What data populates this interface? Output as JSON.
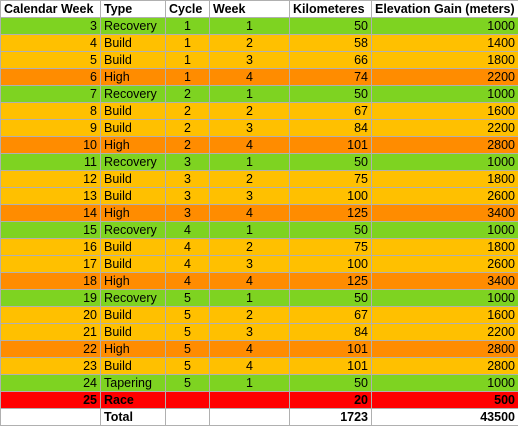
{
  "headers": {
    "calendar_week": "Calendar Week",
    "type": "Type",
    "cycle": "Cycle",
    "week": "Week",
    "km": "Kilometeres",
    "elevation": "Elevation Gain (meters)"
  },
  "colors": {
    "recovery": "#7ed321",
    "build": "#ffc000",
    "high": "#ff8c00",
    "tapering": "#7ed321",
    "race": "#ff0000"
  },
  "rows": [
    {
      "cal": "3",
      "type": "Recovery",
      "cycle": "1",
      "week": "1",
      "km": "50",
      "elev": "1000",
      "cls": "recovery"
    },
    {
      "cal": "4",
      "type": "Build",
      "cycle": "1",
      "week": "2",
      "km": "58",
      "elev": "1400",
      "cls": "build"
    },
    {
      "cal": "5",
      "type": "Build",
      "cycle": "1",
      "week": "3",
      "km": "66",
      "elev": "1800",
      "cls": "build"
    },
    {
      "cal": "6",
      "type": "High",
      "cycle": "1",
      "week": "4",
      "km": "74",
      "elev": "2200",
      "cls": "high"
    },
    {
      "cal": "7",
      "type": "Recovery",
      "cycle": "2",
      "week": "1",
      "km": "50",
      "elev": "1000",
      "cls": "recovery"
    },
    {
      "cal": "8",
      "type": "Build",
      "cycle": "2",
      "week": "2",
      "km": "67",
      "elev": "1600",
      "cls": "build"
    },
    {
      "cal": "9",
      "type": "Build",
      "cycle": "2",
      "week": "3",
      "km": "84",
      "elev": "2200",
      "cls": "build"
    },
    {
      "cal": "10",
      "type": "High",
      "cycle": "2",
      "week": "4",
      "km": "101",
      "elev": "2800",
      "cls": "high"
    },
    {
      "cal": "11",
      "type": "Recovery",
      "cycle": "3",
      "week": "1",
      "km": "50",
      "elev": "1000",
      "cls": "recovery"
    },
    {
      "cal": "12",
      "type": "Build",
      "cycle": "3",
      "week": "2",
      "km": "75",
      "elev": "1800",
      "cls": "build"
    },
    {
      "cal": "13",
      "type": "Build",
      "cycle": "3",
      "week": "3",
      "km": "100",
      "elev": "2600",
      "cls": "build"
    },
    {
      "cal": "14",
      "type": "High",
      "cycle": "3",
      "week": "4",
      "km": "125",
      "elev": "3400",
      "cls": "high"
    },
    {
      "cal": "15",
      "type": "Recovery",
      "cycle": "4",
      "week": "1",
      "km": "50",
      "elev": "1000",
      "cls": "recovery"
    },
    {
      "cal": "16",
      "type": "Build",
      "cycle": "4",
      "week": "2",
      "km": "75",
      "elev": "1800",
      "cls": "build"
    },
    {
      "cal": "17",
      "type": "Build",
      "cycle": "4",
      "week": "3",
      "km": "100",
      "elev": "2600",
      "cls": "build"
    },
    {
      "cal": "18",
      "type": "High",
      "cycle": "4",
      "week": "4",
      "km": "125",
      "elev": "3400",
      "cls": "high"
    },
    {
      "cal": "19",
      "type": "Recovery",
      "cycle": "5",
      "week": "1",
      "km": "50",
      "elev": "1000",
      "cls": "recovery"
    },
    {
      "cal": "20",
      "type": "Build",
      "cycle": "5",
      "week": "2",
      "km": "67",
      "elev": "1600",
      "cls": "build"
    },
    {
      "cal": "21",
      "type": "Build",
      "cycle": "5",
      "week": "3",
      "km": "84",
      "elev": "2200",
      "cls": "build"
    },
    {
      "cal": "22",
      "type": "High",
      "cycle": "5",
      "week": "4",
      "km": "101",
      "elev": "2800",
      "cls": "high"
    },
    {
      "cal": "23",
      "type": "Build",
      "cycle": "5",
      "week": "4",
      "km": "101",
      "elev": "2800",
      "cls": "build"
    },
    {
      "cal": "24",
      "type": "Tapering",
      "cycle": "5",
      "week": "1",
      "km": "50",
      "elev": "1000",
      "cls": "tapering"
    },
    {
      "cal": "25",
      "type": "Race",
      "cycle": "",
      "week": "",
      "km": "20",
      "elev": "500",
      "cls": "race"
    }
  ],
  "total": {
    "label": "Total",
    "km": "1723",
    "elev": "43500"
  }
}
